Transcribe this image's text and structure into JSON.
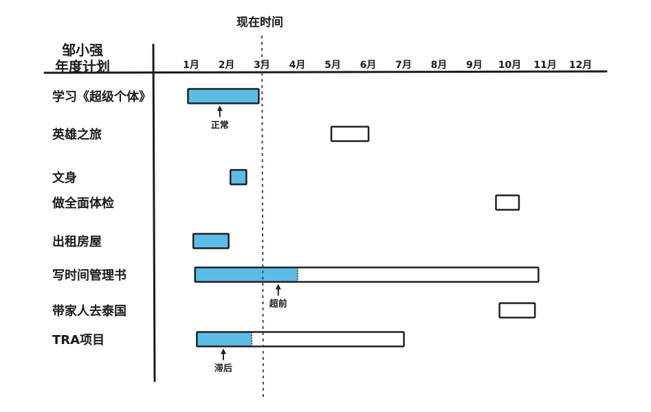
{
  "chart_data": {
    "type": "gantt",
    "header": {
      "line1": "邹小强",
      "line2": "年度计划"
    },
    "now_label": "现在时间",
    "now_month": 3.0,
    "months": [
      "1月",
      "2月",
      "3月",
      "4月",
      "5月",
      "6月",
      "7月",
      "8月",
      "9月",
      "10月",
      "11月",
      "12月"
    ],
    "colors": {
      "done": "#5bbde6",
      "outline": "#1f1f1f",
      "dotted_line": "#2c4f6e"
    },
    "tasks": [
      {
        "label": "学习《超级个体》",
        "start": 0.95,
        "end": 2.95,
        "progress_end": 2.95,
        "note": "正常",
        "note_at": 1.85
      },
      {
        "label": "英雄之旅",
        "start": 5.0,
        "end": 6.05,
        "progress_end": null
      },
      {
        "label": "文身",
        "start": 2.15,
        "end": 2.6,
        "progress_end": 2.6
      },
      {
        "label": "做全面体检",
        "start": 9.65,
        "end": 10.3,
        "progress_end": null
      },
      {
        "label": "出租房屋",
        "start": 1.1,
        "end": 2.1,
        "progress_end": 2.1
      },
      {
        "label": "写时间管理书",
        "start": 1.15,
        "end": 10.85,
        "progress_end": 4.05,
        "note": "超前",
        "note_at": 3.5
      },
      {
        "label": "带家人去泰国",
        "start": 9.75,
        "end": 10.75,
        "progress_end": null
      },
      {
        "label": "TRA项目",
        "start": 1.2,
        "end": 7.05,
        "progress_end": 2.75,
        "note": "滞后",
        "note_at": 1.95
      }
    ]
  }
}
